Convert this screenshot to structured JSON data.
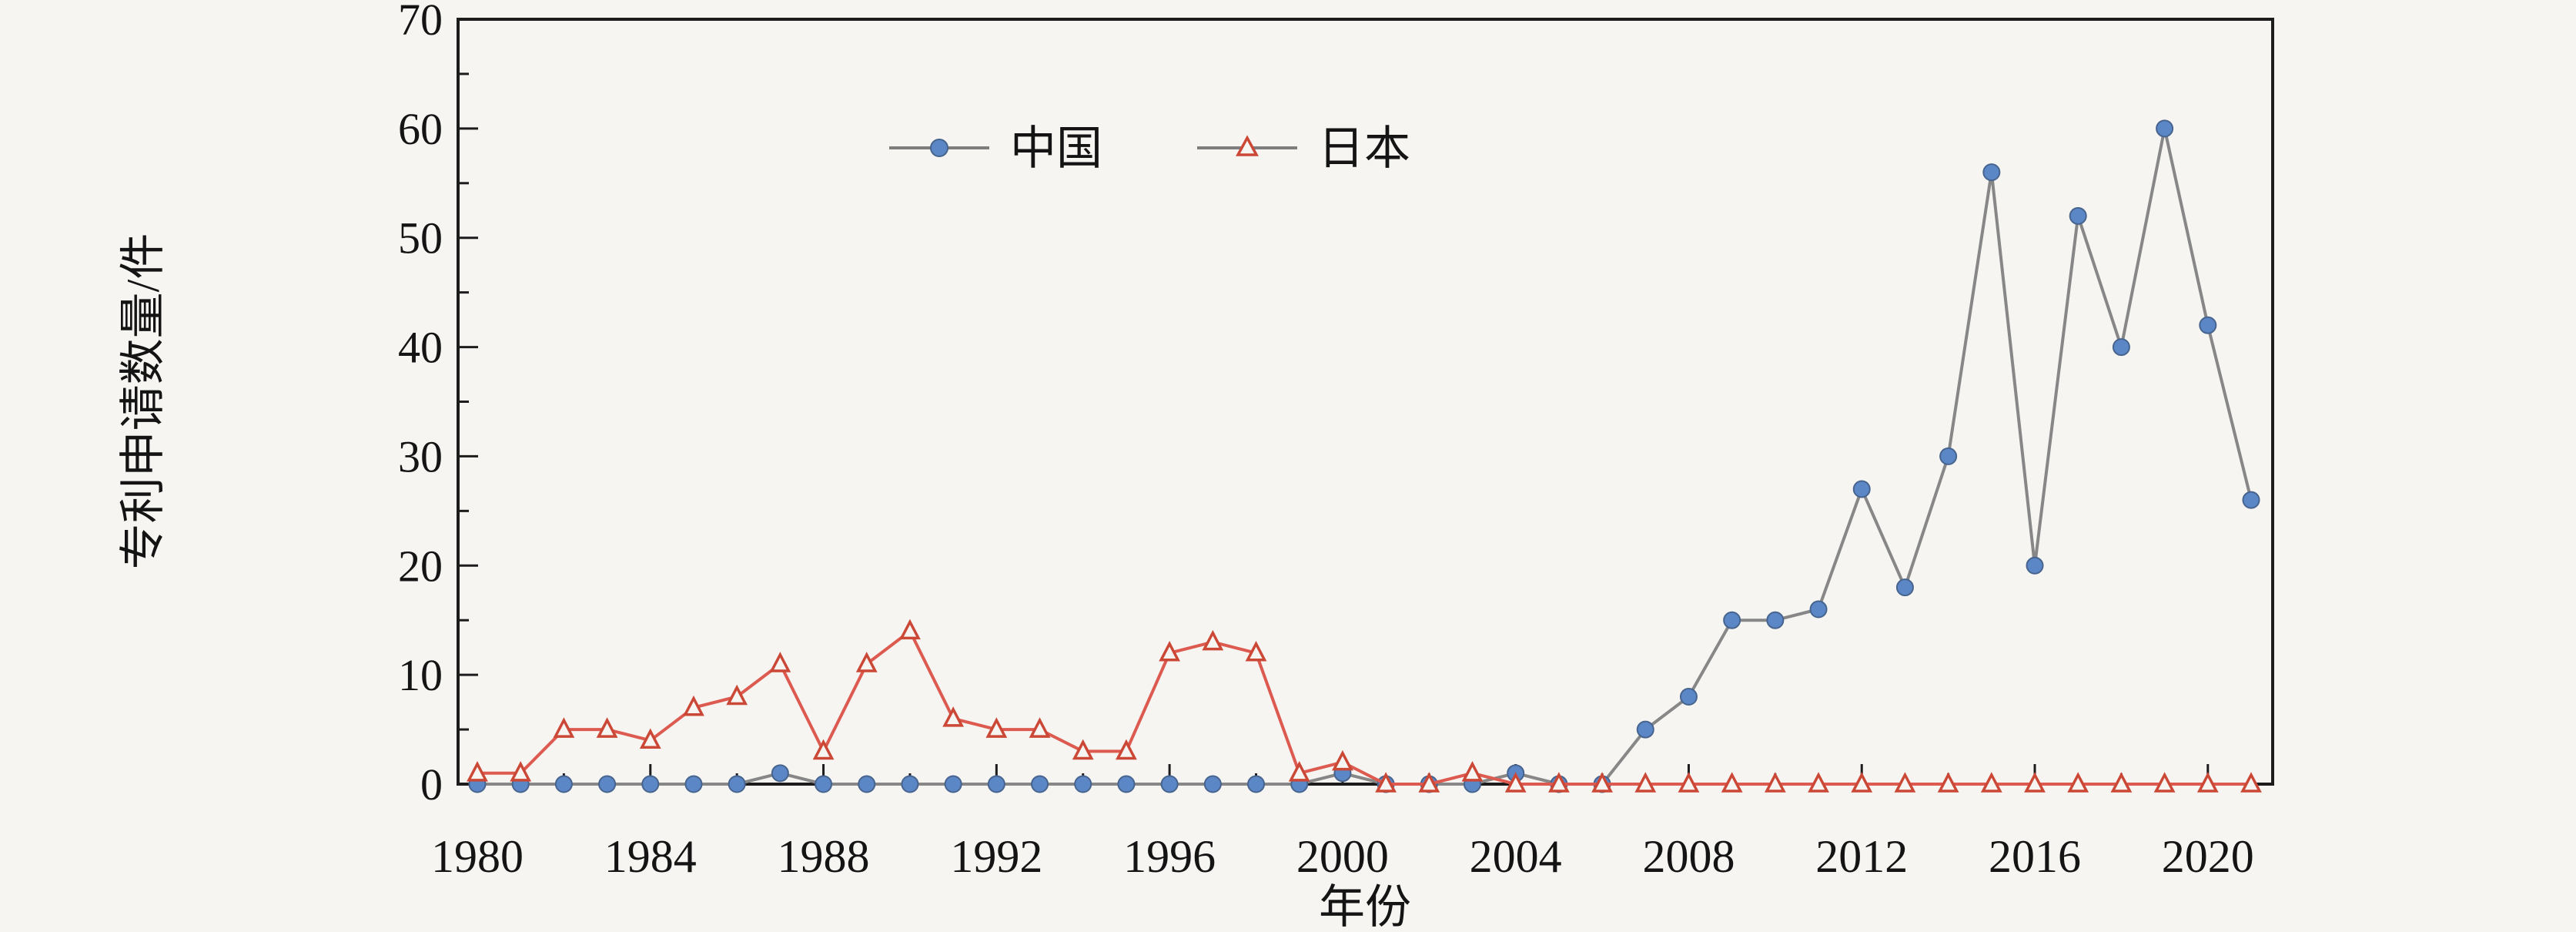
{
  "figure": {
    "background": "#f6f5f2",
    "axis_color": "#1c1c1c"
  },
  "axes": {
    "x_title": "年份",
    "y_title": "专利申请数量/件"
  },
  "legend": {
    "items": [
      {
        "label": "中国",
        "marker": "filled-circle"
      },
      {
        "label": "日本",
        "marker": "open-triangle"
      }
    ],
    "sample_line_color": "#7d7d7d"
  },
  "chart_data": {
    "type": "line",
    "title": "",
    "xlabel": "年份",
    "ylabel": "专利申请数量/件",
    "x": [
      1980,
      1981,
      1982,
      1983,
      1984,
      1985,
      1986,
      1987,
      1988,
      1989,
      1990,
      1991,
      1992,
      1993,
      1994,
      1995,
      1996,
      1997,
      1998,
      1999,
      2000,
      2001,
      2002,
      2003,
      2004,
      2005,
      2006,
      2007,
      2008,
      2009,
      2010,
      2011,
      2012,
      2013,
      2014,
      2015,
      2016,
      2017,
      2018,
      2019,
      2020,
      2021
    ],
    "series": [
      {
        "name": "中国",
        "marker": "circle",
        "line_color": "#878787",
        "marker_fill": "#5c87c7",
        "marker_edge": "#47648e",
        "values": [
          0,
          0,
          0,
          0,
          0,
          0,
          0,
          1,
          0,
          0,
          0,
          0,
          0,
          0,
          0,
          0,
          0,
          0,
          0,
          0,
          1,
          0,
          0,
          0,
          1,
          0,
          0,
          5,
          8,
          15,
          15,
          16,
          27,
          18,
          30,
          56,
          20,
          52,
          40,
          60,
          42,
          26
        ]
      },
      {
        "name": "日本",
        "marker": "triangle-open",
        "line_color": "#dd5a50",
        "marker_fill": "#f6f5f2",
        "marker_edge": "#cc4836",
        "values": [
          1,
          1,
          5,
          5,
          4,
          7,
          8,
          11,
          3,
          11,
          14,
          6,
          5,
          5,
          3,
          3,
          12,
          13,
          12,
          1,
          2,
          0,
          0,
          1,
          0,
          0,
          0,
          0,
          0,
          0,
          0,
          0,
          0,
          0,
          0,
          0,
          0,
          0,
          0,
          0,
          0,
          0
        ]
      }
    ],
    "ylim": [
      0,
      70
    ],
    "yticks": [
      0,
      10,
      20,
      30,
      40,
      50,
      60,
      70
    ],
    "y_minor_ticks": [
      5,
      15,
      25,
      35,
      45,
      55,
      65
    ],
    "xticks": [
      1980,
      1984,
      1988,
      1992,
      1996,
      2000,
      2004,
      2008,
      2012,
      2016,
      2020
    ],
    "x_minor_ticks": [
      1982,
      1986,
      1990,
      1994,
      1998,
      2002,
      2006,
      2010,
      2014,
      2018
    ],
    "grid": false,
    "legend_position": "top-center",
    "tick_direction": "in"
  }
}
